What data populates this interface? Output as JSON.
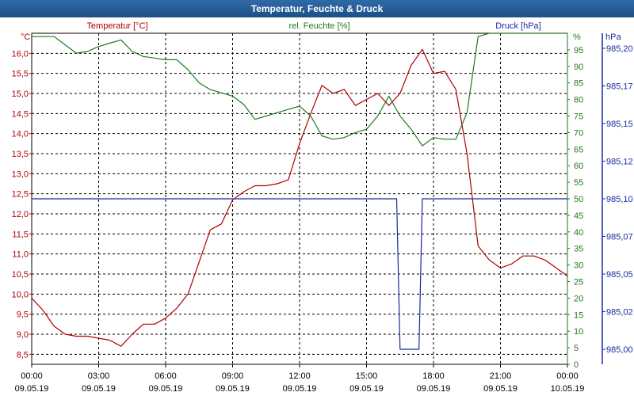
{
  "window": {
    "title": "Temperatur, Feuchte & Druck"
  },
  "colors": {
    "temperature": "#b00000",
    "humidity": "#1e7a1e",
    "pressure": "#1a2aa0",
    "grid": "#000000",
    "title_bar": "#1e4f86"
  },
  "chart_data": {
    "type": "line",
    "title": "Temperatur, Feuchte & Druck",
    "grid": true,
    "x_ticks": [
      {
        "time": "00:00",
        "date": "09.05.19"
      },
      {
        "time": "03:00",
        "date": "09.05.19"
      },
      {
        "time": "06:00",
        "date": "09.05.19"
      },
      {
        "time": "09:00",
        "date": "09.05.19"
      },
      {
        "time": "12:00",
        "date": "09.05.19"
      },
      {
        "time": "15:00",
        "date": "09.05.19"
      },
      {
        "time": "18:00",
        "date": "09.05.19"
      },
      {
        "time": "21:00",
        "date": "09.05.19"
      },
      {
        "time": "00:00",
        "date": "10.05.19"
      }
    ],
    "axes": {
      "temperature": {
        "label": "Temperatur [°C]",
        "unit": "°C",
        "min": 8.25,
        "max": 16.5,
        "ticks": [
          "8,5",
          "9,0",
          "9,5",
          "10,0",
          "10,5",
          "11,0",
          "11,5",
          "12,0",
          "12,5",
          "13,0",
          "13,5",
          "14,0",
          "14,5",
          "15,0",
          "15,5",
          "16,0"
        ],
        "tick_values": [
          8.5,
          9.0,
          9.5,
          10.0,
          10.5,
          11.0,
          11.5,
          12.0,
          12.5,
          13.0,
          13.5,
          14.0,
          14.5,
          15.0,
          15.5,
          16.0
        ]
      },
      "humidity": {
        "label": "rel. Feuchte [%]",
        "unit": "%",
        "min": 0,
        "max": 100,
        "ticks": [
          "0",
          "5",
          "10",
          "15",
          "20",
          "25",
          "30",
          "35",
          "40",
          "45",
          "50",
          "55",
          "60",
          "65",
          "70",
          "75",
          "80",
          "85",
          "90",
          "95"
        ],
        "tick_values": [
          0,
          5,
          10,
          15,
          20,
          25,
          30,
          35,
          40,
          45,
          50,
          55,
          60,
          65,
          70,
          75,
          80,
          85,
          90,
          95
        ]
      },
      "pressure": {
        "label": "Druck [hPa]",
        "unit": "hPa",
        "ticks": [
          "985,00",
          "985,02",
          "985,05",
          "985,07",
          "985,10",
          "985,12",
          "985,15",
          "985,17",
          "985,20"
        ],
        "tick_values": [
          985.0,
          985.025,
          985.05,
          985.075,
          985.1,
          985.125,
          985.15,
          985.175,
          985.2
        ],
        "min": 984.99,
        "max": 985.21
      }
    },
    "series": [
      {
        "name": "Temperatur [°C]",
        "axis": "temperature",
        "x_hours": [
          0,
          0.5,
          1,
          1.5,
          2,
          2.5,
          3,
          3.5,
          4,
          4.5,
          5,
          5.5,
          6,
          6.5,
          7,
          7.5,
          8,
          8.5,
          9,
          9.5,
          10,
          10.5,
          11,
          11.5,
          12,
          12.5,
          13,
          13.5,
          14,
          14.5,
          15,
          15.5,
          16,
          16.5,
          17,
          17.5,
          18,
          18.5,
          19,
          19.5,
          20,
          20.5,
          21,
          21.5,
          22,
          22.5,
          23,
          23.5,
          24
        ],
        "values": [
          9.9,
          9.6,
          9.2,
          9.0,
          8.95,
          8.95,
          8.9,
          8.85,
          8.7,
          9.0,
          9.25,
          9.25,
          9.4,
          9.65,
          10.0,
          10.8,
          11.6,
          11.75,
          12.35,
          12.55,
          12.7,
          12.7,
          12.75,
          12.85,
          13.75,
          14.5,
          15.2,
          15.0,
          15.1,
          14.7,
          14.85,
          15.0,
          14.7,
          15.0,
          15.7,
          16.1,
          15.5,
          15.55,
          15.1,
          13.5,
          11.2,
          10.85,
          10.65,
          10.75,
          10.95,
          10.95,
          10.85,
          10.65,
          10.45
        ]
      },
      {
        "name": "rel. Feuchte [%]",
        "axis": "humidity",
        "x_hours": [
          0,
          0.5,
          1,
          1.5,
          2,
          2.5,
          3,
          3.5,
          4,
          4.5,
          5,
          5.5,
          6,
          6.5,
          7,
          7.5,
          8,
          8.5,
          9,
          9.5,
          10,
          10.5,
          11,
          11.5,
          12,
          12.5,
          13,
          13.5,
          14,
          14.5,
          15,
          15.5,
          16,
          16.5,
          17,
          17.5,
          18,
          18.5,
          19,
          19.5,
          20,
          20.5,
          21,
          21.5,
          22,
          22.5,
          23,
          23.5,
          24
        ],
        "values": [
          99,
          99,
          99,
          96.5,
          94,
          94.5,
          96,
          97,
          98,
          94.5,
          93,
          92.5,
          92,
          92,
          89,
          85,
          83,
          82,
          81,
          78.5,
          74,
          75,
          76,
          77,
          78,
          75,
          69,
          68,
          68.5,
          70,
          71,
          75,
          81,
          75,
          71,
          66,
          68.5,
          68,
          68,
          76,
          99,
          100,
          100,
          100,
          100,
          100,
          100,
          100,
          100
        ]
      },
      {
        "name": "Druck [hPa]",
        "axis": "pressure",
        "x_hours": [
          0,
          16.35,
          16.5,
          17.35,
          17.5,
          24
        ],
        "values": [
          985.1,
          985.1,
          985.0,
          985.0,
          985.1,
          985.1
        ]
      }
    ]
  }
}
